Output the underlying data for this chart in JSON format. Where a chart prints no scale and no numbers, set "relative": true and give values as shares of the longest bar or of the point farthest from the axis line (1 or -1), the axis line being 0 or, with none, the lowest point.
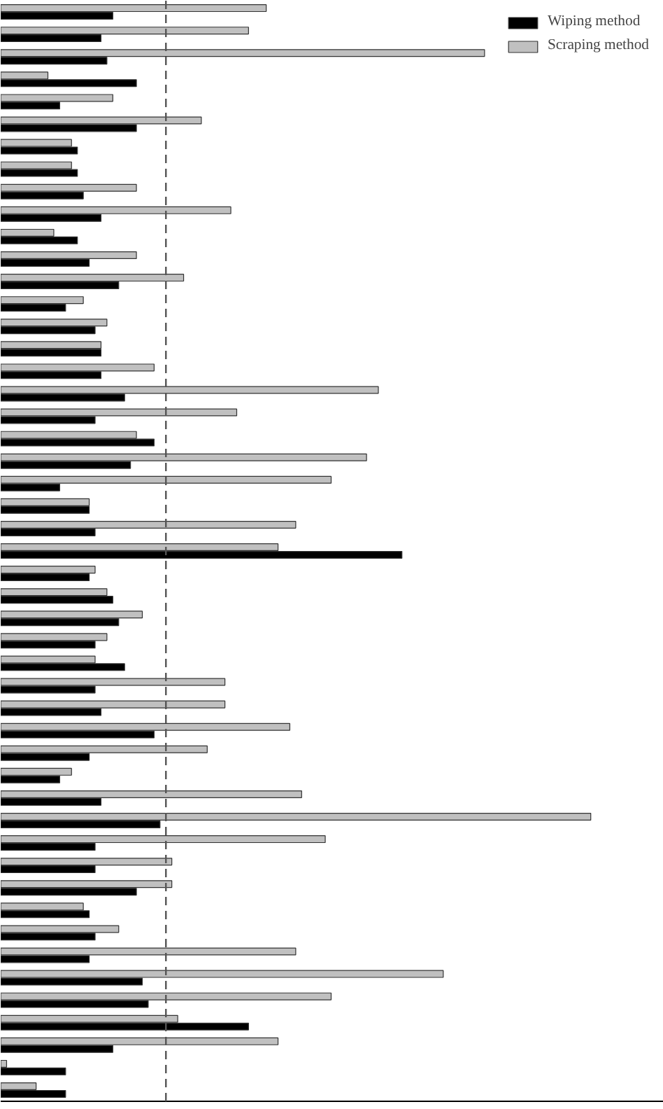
{
  "chart_data": {
    "type": "bar",
    "orientation": "horizontal",
    "relative": true,
    "legend": "top right",
    "grid": false,
    "categories": [
      null,
      null,
      null,
      null,
      null,
      null,
      null,
      null,
      null,
      null,
      null,
      null,
      null,
      null,
      null,
      null,
      null,
      null,
      null,
      null,
      null,
      null,
      null,
      null,
      null,
      null,
      null,
      null,
      null,
      null,
      null,
      null,
      null,
      null,
      null,
      null,
      null,
      null,
      null,
      null,
      null,
      null,
      null,
      null,
      null,
      null,
      null,
      null,
      null
    ],
    "series": [
      {
        "name": "Wiping method",
        "color": "#000000",
        "values": [
          0.19,
          0.17,
          0.18,
          0.23,
          0.1,
          0.23,
          0.13,
          0.13,
          0.14,
          0.17,
          0.13,
          0.15,
          0.2,
          0.11,
          0.16,
          0.17,
          0.17,
          0.21,
          0.16,
          0.26,
          0.22,
          0.1,
          0.15,
          0.16,
          0.68,
          0.15,
          0.19,
          0.2,
          0.16,
          0.21,
          0.16,
          0.17,
          0.26,
          0.15,
          0.1,
          0.17,
          0.27,
          0.16,
          0.16,
          0.23,
          0.15,
          0.16,
          0.15,
          0.24,
          0.25,
          0.42,
          0.19,
          0.11,
          0.11
        ]
      },
      {
        "name": "Scraping method",
        "color": "#c0c0c0",
        "values": [
          0.45,
          0.42,
          0.82,
          0.08,
          0.19,
          0.34,
          0.12,
          0.12,
          0.23,
          0.39,
          0.09,
          0.23,
          0.31,
          0.14,
          0.18,
          0.17,
          0.26,
          0.64,
          0.4,
          0.23,
          0.62,
          0.56,
          0.15,
          0.5,
          0.47,
          0.16,
          0.18,
          0.24,
          0.18,
          0.16,
          0.38,
          0.38,
          0.49,
          0.35,
          0.12,
          0.51,
          1,
          0.55,
          0.29,
          0.29,
          0.14,
          0.2,
          0.5,
          0.75,
          0.56,
          0.3,
          0.47,
          0.01,
          0.06
        ]
      }
    ],
    "ref_lines": [
      {
        "axis": "x",
        "value": 0.28,
        "line_style": "dashed",
        "color": "#555555"
      }
    ]
  }
}
